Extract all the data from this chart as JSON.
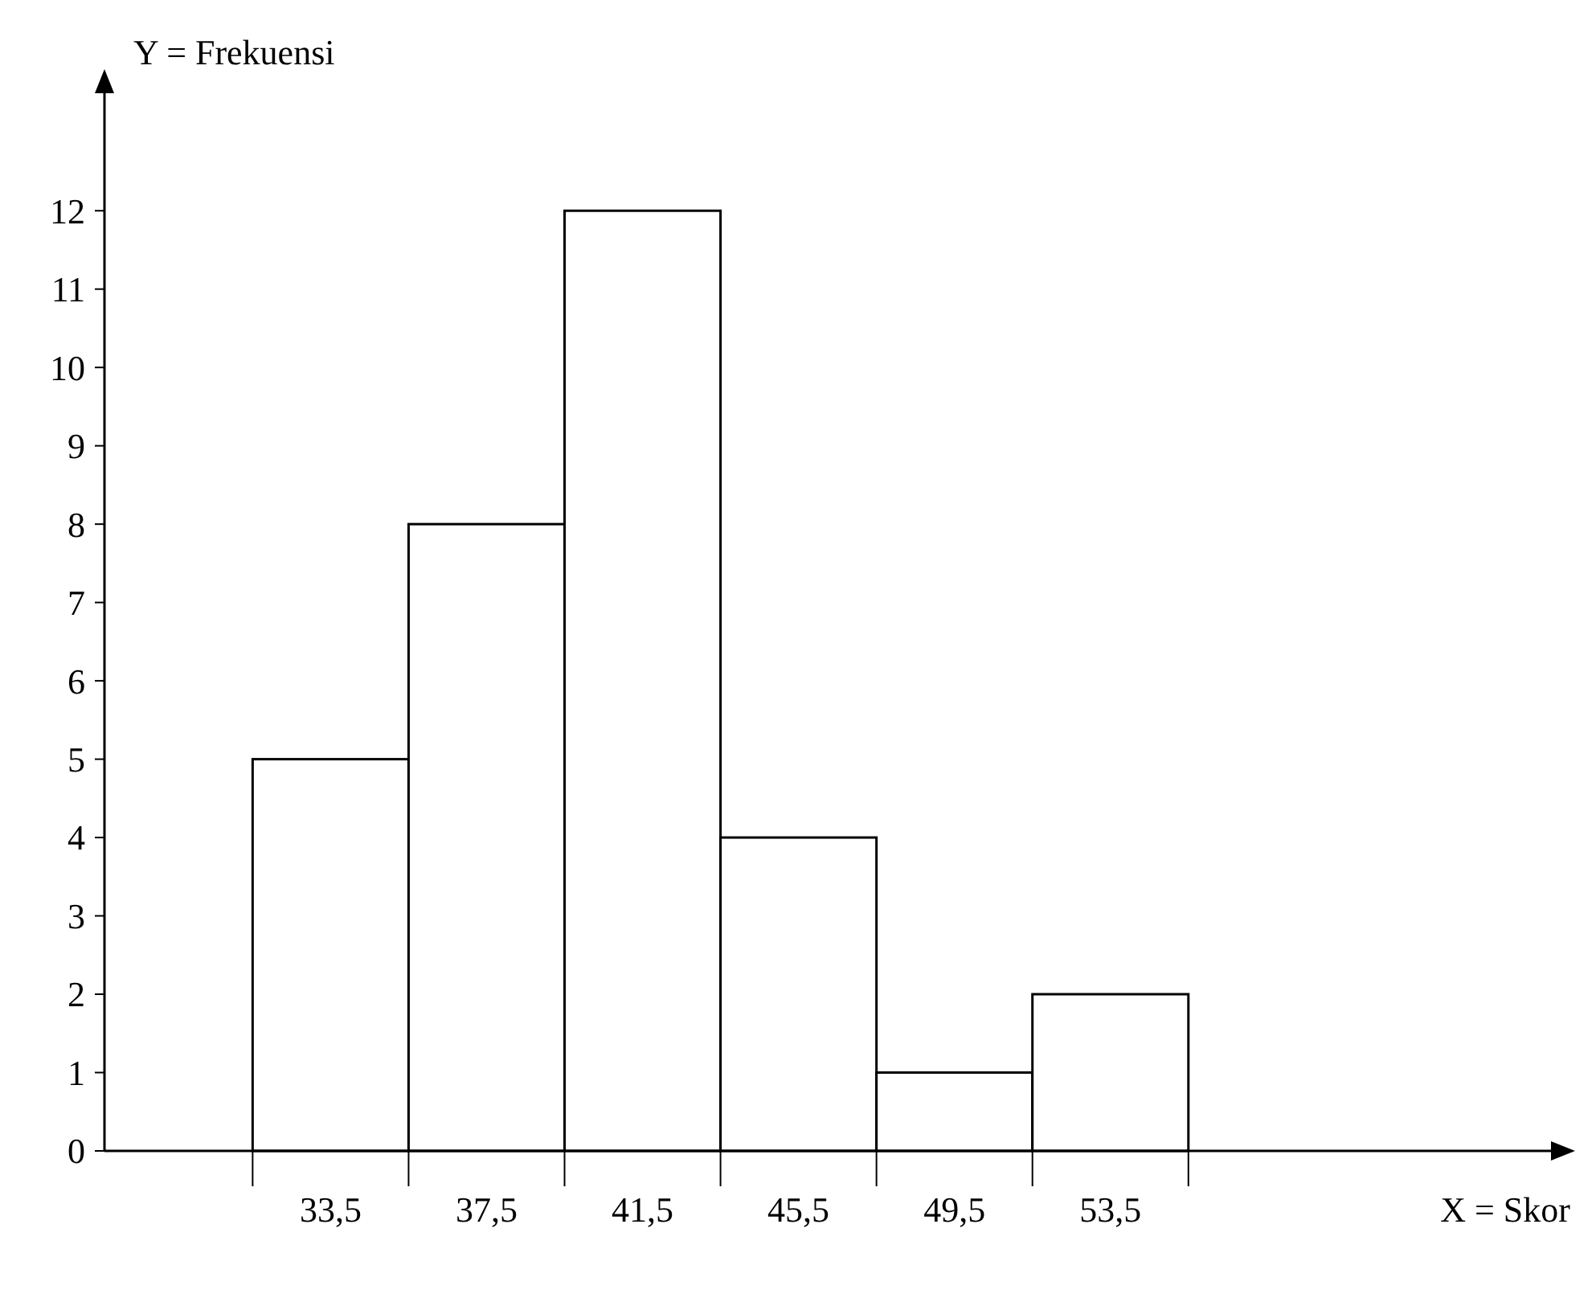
{
  "chart_data": {
    "type": "histogram",
    "xlabel": "X = Skor",
    "ylabel": "Y = Frekuensi",
    "bins": [
      31.5,
      35.5,
      39.5,
      43.5,
      47.5,
      51.5,
      55.5
    ],
    "values": [
      5,
      8,
      12,
      4,
      1,
      2
    ],
    "color": "#ffffff",
    "xlim": [
      27.7,
      64.8
    ],
    "ylim": [
      0,
      13.5
    ],
    "xticks": [
      {
        "value": 33.5,
        "label": "33,5"
      },
      {
        "value": 37.5,
        "label": "37,5"
      },
      {
        "value": 41.5,
        "label": "41,5"
      },
      {
        "value": 45.5,
        "label": "45,5"
      },
      {
        "value": 49.5,
        "label": "49,5"
      },
      {
        "value": 53.5,
        "label": "53,5"
      }
    ],
    "yticks": [
      0,
      1,
      2,
      3,
      4,
      5,
      6,
      7,
      8,
      9,
      10,
      11,
      12
    ],
    "grid": false
  }
}
